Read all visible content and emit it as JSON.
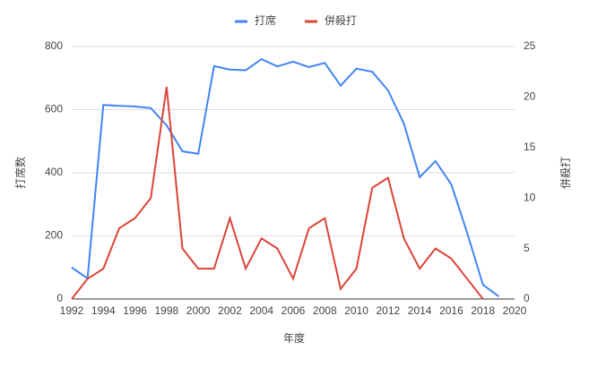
{
  "chart_data": {
    "type": "line",
    "x": [
      1992,
      1993,
      1994,
      1995,
      1996,
      1997,
      1998,
      1999,
      2000,
      2001,
      2002,
      2003,
      2004,
      2005,
      2006,
      2007,
      2008,
      2009,
      2010,
      2011,
      2012,
      2013,
      2014,
      2015,
      2016,
      2017,
      2018,
      2019
    ],
    "series": [
      {
        "name": "打席",
        "color": "#4285f4",
        "axis": "y",
        "values": [
          100,
          65,
          615,
          612,
          610,
          605,
          550,
          468,
          460,
          738,
          727,
          725,
          760,
          737,
          752,
          735,
          748,
          676,
          730,
          720,
          661,
          556,
          386,
          437,
          363,
          210,
          45,
          8
        ]
      },
      {
        "name": "併殺打",
        "color": "#db4437",
        "axis": "y2",
        "values": [
          0,
          2,
          3,
          7,
          8,
          10,
          21,
          5,
          3,
          3,
          8,
          3,
          6,
          5,
          2,
          7,
          8,
          1,
          3,
          11,
          12,
          6,
          3,
          5,
          4,
          2,
          0,
          null
        ]
      }
    ],
    "x_label": "年度",
    "y_label": "打席数",
    "y2_label": "併殺打",
    "xlim": [
      1992,
      2020
    ],
    "xticks": [
      1992,
      1994,
      1996,
      1998,
      2000,
      2002,
      2004,
      2006,
      2008,
      2010,
      2012,
      2014,
      2016,
      2018,
      2020
    ],
    "ylim": [
      0,
      800
    ],
    "yticks": [
      0,
      200,
      400,
      600,
      800
    ],
    "y2lim": [
      0,
      25
    ],
    "y2ticks": [
      0,
      5,
      10,
      15,
      20,
      25
    ],
    "grid": true,
    "legend": "top"
  }
}
